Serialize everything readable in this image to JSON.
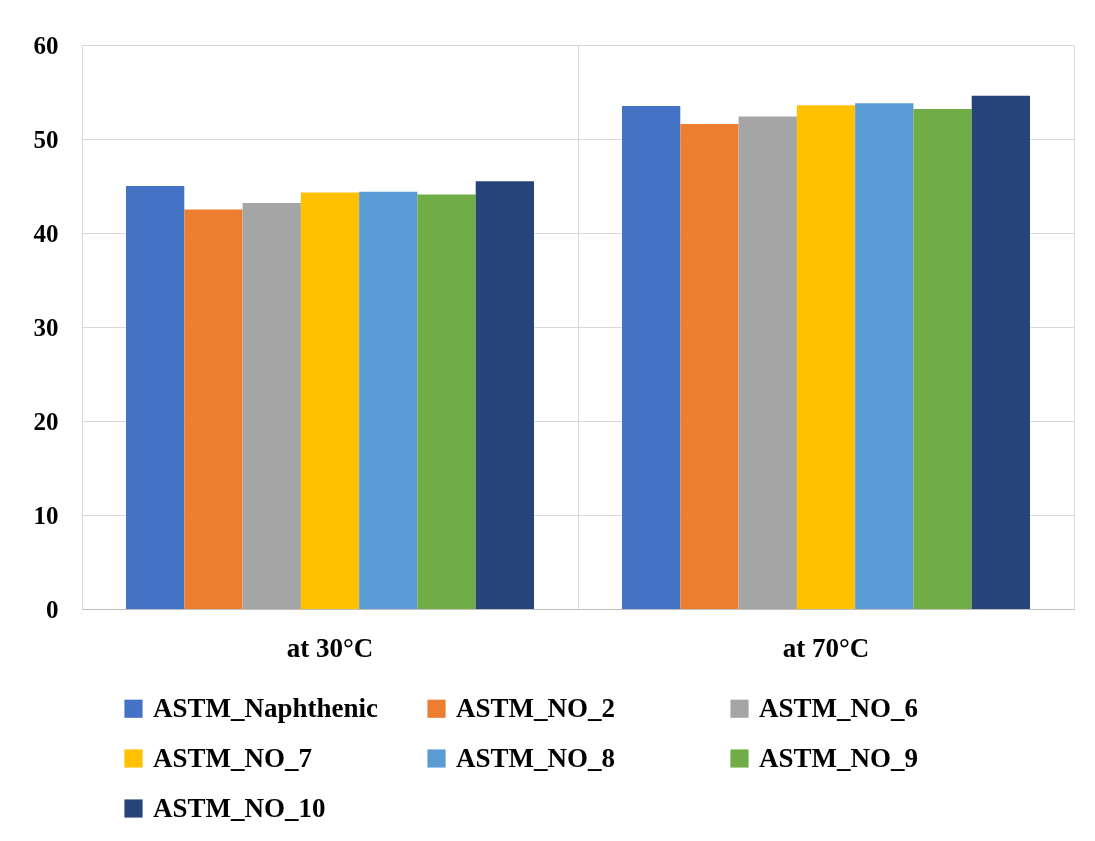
{
  "chart_data": {
    "type": "bar",
    "categories": [
      "at 30°C",
      "at 70°C"
    ],
    "series": [
      {
        "name": "ASTM_Naphthenic",
        "color": "#4472c4",
        "values": [
          45.0,
          53.5
        ]
      },
      {
        "name": "ASTM_NO_2",
        "color": "#ed7d31",
        "values": [
          42.5,
          51.6
        ]
      },
      {
        "name": "ASTM_NO_6",
        "color": "#a5a5a5",
        "values": [
          43.2,
          52.4
        ]
      },
      {
        "name": "ASTM_NO_7",
        "color": "#ffc000",
        "values": [
          44.3,
          53.6
        ]
      },
      {
        "name": "ASTM_NO_8",
        "color": "#5b9bd5",
        "values": [
          44.4,
          53.8
        ]
      },
      {
        "name": "ASTM_NO_9",
        "color": "#70ad47",
        "values": [
          44.1,
          53.2
        ]
      },
      {
        "name": "ASTM_NO_10",
        "color": "#264478",
        "values": [
          45.5,
          54.6
        ]
      }
    ],
    "ylim": [
      0,
      60
    ],
    "yticks": [
      0,
      10,
      20,
      30,
      40,
      50,
      60
    ],
    "grid": true,
    "legend": "bottom"
  }
}
